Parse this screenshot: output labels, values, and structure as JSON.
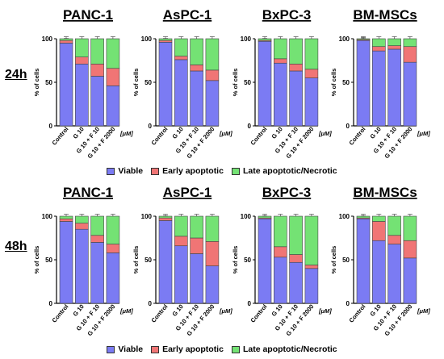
{
  "units_label": "[μM]",
  "legend": [
    {
      "label": "Viable",
      "color": "#7b7bf3"
    },
    {
      "label": "Early apoptotic",
      "color": "#f07575"
    },
    {
      "label": "Late apoptotic/Necrotic",
      "color": "#74e274"
    }
  ],
  "rows": [
    {
      "label": "24h"
    },
    {
      "label": "48h"
    }
  ],
  "chart_data": [
    {
      "type": "bar",
      "title": "PANC-1",
      "row": "24h",
      "ylabel": "% of cells",
      "ylim": [
        0,
        100
      ],
      "categories": [
        "Control",
        "G 10",
        "G 10 + F 10",
        "G 10 + F 2000"
      ],
      "series": [
        {
          "name": "Viable",
          "values": [
            95,
            71,
            57,
            46
          ]
        },
        {
          "name": "Early apoptotic",
          "values": [
            3,
            8,
            14,
            20
          ]
        },
        {
          "name": "Late apoptotic/Necrotic",
          "values": [
            2,
            21,
            29,
            34
          ]
        }
      ]
    },
    {
      "type": "bar",
      "title": "AsPC-1",
      "row": "24h",
      "ylabel": "% of cells",
      "ylim": [
        0,
        100
      ],
      "categories": [
        "Control",
        "G 10",
        "G 10 + F 10",
        "G 10 + F 2000"
      ],
      "series": [
        {
          "name": "Viable",
          "values": [
            96,
            76,
            63,
            52
          ]
        },
        {
          "name": "Early apoptotic",
          "values": [
            2,
            4,
            7,
            12
          ]
        },
        {
          "name": "Late apoptotic/Necrotic",
          "values": [
            2,
            20,
            30,
            36
          ]
        }
      ]
    },
    {
      "type": "bar",
      "title": "BxPC-3",
      "row": "24h",
      "ylabel": "% of cells",
      "ylim": [
        0,
        100
      ],
      "categories": [
        "Control",
        "G 10",
        "G 10 + F 10",
        "G 10 + F 2000"
      ],
      "series": [
        {
          "name": "Viable",
          "values": [
            97,
            72,
            63,
            55
          ]
        },
        {
          "name": "Early apoptotic",
          "values": [
            1,
            5,
            8,
            10
          ]
        },
        {
          "name": "Late apoptotic/Necrotic",
          "values": [
            2,
            23,
            29,
            35
          ]
        }
      ]
    },
    {
      "type": "bar",
      "title": "BM-MSCs",
      "row": "24h",
      "ylabel": "% of cells",
      "ylim": [
        0,
        100
      ],
      "categories": [
        "Control",
        "G 10",
        "G 10 + F 10",
        "G 10 + F 2000"
      ],
      "series": [
        {
          "name": "Viable",
          "values": [
            98,
            86,
            88,
            73
          ]
        },
        {
          "name": "Early apoptotic",
          "values": [
            1,
            5,
            4,
            18
          ]
        },
        {
          "name": "Late apoptotic/Necrotic",
          "values": [
            1,
            9,
            8,
            9
          ]
        }
      ]
    },
    {
      "type": "bar",
      "title": "PANC-1",
      "row": "48h",
      "ylabel": "% of cells",
      "ylim": [
        0,
        100
      ],
      "categories": [
        "Control",
        "G 10",
        "G 10 + F 10",
        "G 10 + F 2000"
      ],
      "series": [
        {
          "name": "Viable",
          "values": [
            94,
            85,
            70,
            58
          ]
        },
        {
          "name": "Early apoptotic",
          "values": [
            3,
            7,
            8,
            10
          ]
        },
        {
          "name": "Late apoptotic/Necrotic",
          "values": [
            3,
            8,
            22,
            32
          ]
        }
      ]
    },
    {
      "type": "bar",
      "title": "AsPC-1",
      "row": "48h",
      "ylabel": "% of cells",
      "ylim": [
        0,
        100
      ],
      "categories": [
        "Control",
        "G 10",
        "G 10 + F 10",
        "G 10 + F 2000"
      ],
      "series": [
        {
          "name": "Viable",
          "values": [
            95,
            66,
            57,
            43
          ]
        },
        {
          "name": "Early apoptotic",
          "values": [
            3,
            11,
            18,
            28
          ]
        },
        {
          "name": "Late apoptotic/Necrotic",
          "values": [
            2,
            23,
            25,
            29
          ]
        }
      ]
    },
    {
      "type": "bar",
      "title": "BxPC-3",
      "row": "48h",
      "ylabel": "% of cells",
      "ylim": [
        0,
        100
      ],
      "categories": [
        "Control",
        "G 10",
        "G 10 + F 10",
        "G 10 + F 2000"
      ],
      "series": [
        {
          "name": "Viable",
          "values": [
            97,
            53,
            47,
            40
          ]
        },
        {
          "name": "Early apoptotic",
          "values": [
            1,
            12,
            9,
            4
          ]
        },
        {
          "name": "Late apoptotic/Necrotic",
          "values": [
            2,
            35,
            44,
            56
          ]
        }
      ]
    },
    {
      "type": "bar",
      "title": "BM-MSCs",
      "row": "48h",
      "ylabel": "% of cells",
      "ylim": [
        0,
        100
      ],
      "categories": [
        "Control",
        "G 10",
        "G 10 + F 10",
        "G 10 + F 2000"
      ],
      "series": [
        {
          "name": "Viable",
          "values": [
            97,
            72,
            68,
            52
          ]
        },
        {
          "name": "Early apoptotic",
          "values": [
            1,
            22,
            10,
            20
          ]
        },
        {
          "name": "Late apoptotic/Necrotic",
          "values": [
            2,
            6,
            22,
            28
          ]
        }
      ]
    }
  ]
}
